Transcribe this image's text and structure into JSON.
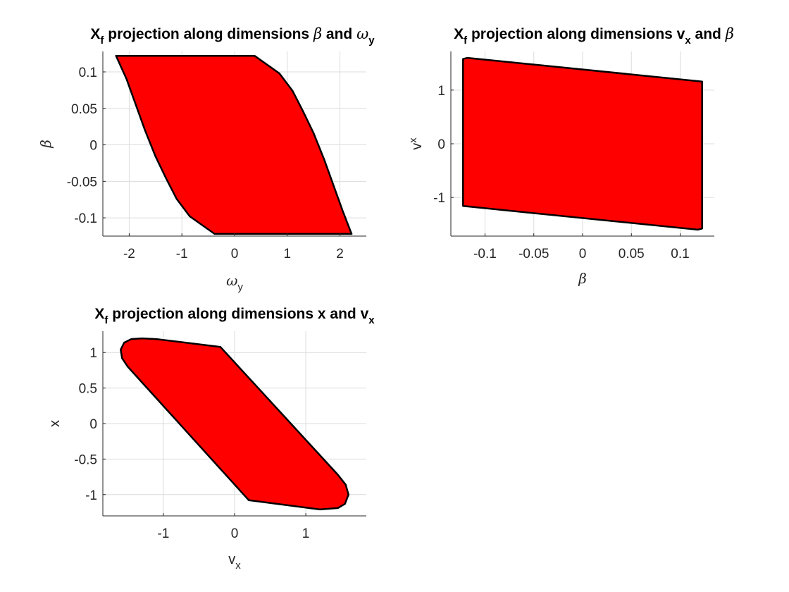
{
  "colors": {
    "fill": "#ff0000",
    "edge": "#000000",
    "axis": "#262626",
    "grid": "#dcdcdc",
    "background": "#ffffff"
  },
  "chart_data": [
    {
      "type": "area",
      "title": {
        "main": "X",
        "sub": "f",
        "rest": " projection along dimensions ",
        "a": "β",
        "and": " and ",
        "b": "ω",
        "b_sub": "y"
      },
      "xlabel": {
        "main": "ω",
        "sub": "y"
      },
      "ylabel": {
        "main": "β",
        "sub": ""
      },
      "xlim": [
        -2.5,
        2.5
      ],
      "ylim": [
        -0.125,
        0.128
      ],
      "xticks": [
        -2,
        -1,
        0,
        1,
        2
      ],
      "xtick_labels": [
        "-2",
        "-1",
        "0",
        "1",
        "2"
      ],
      "yticks": [
        -0.1,
        -0.05,
        0,
        0.05,
        0.1
      ],
      "ytick_labels": [
        "-0.1",
        "-0.05",
        "0",
        "0.05",
        "0.1"
      ],
      "grid": true,
      "polygon": [
        [
          -2.25,
          0.122
        ],
        [
          0.38,
          0.122
        ],
        [
          0.85,
          0.098
        ],
        [
          1.1,
          0.074
        ],
        [
          1.3,
          0.046
        ],
        [
          1.5,
          0.016
        ],
        [
          1.7,
          -0.02
        ],
        [
          1.9,
          -0.06
        ],
        [
          2.05,
          -0.09
        ],
        [
          2.22,
          -0.122
        ],
        [
          -0.38,
          -0.122
        ],
        [
          -0.85,
          -0.098
        ],
        [
          -1.1,
          -0.074
        ],
        [
          -1.3,
          -0.046
        ],
        [
          -1.5,
          -0.016
        ],
        [
          -1.7,
          0.02
        ],
        [
          -1.9,
          0.06
        ],
        [
          -2.05,
          0.09
        ]
      ]
    },
    {
      "type": "area",
      "title": {
        "main": "X",
        "sub": "f",
        "rest": " projection along dimensions ",
        "a": "v",
        "a_sub": "x",
        "and": " and ",
        "b": "β"
      },
      "xlabel": {
        "main": "β",
        "sub": ""
      },
      "ylabel": {
        "main": "v",
        "sub": "x"
      },
      "xlim": [
        -0.135,
        0.135
      ],
      "ylim": [
        -1.72,
        1.72
      ],
      "xticks": [
        -0.1,
        -0.05,
        0,
        0.05,
        0.1
      ],
      "xtick_labels": [
        "-0.1",
        "-0.05",
        "0",
        "0.05",
        "0.1"
      ],
      "yticks": [
        -1,
        0,
        1
      ],
      "ytick_labels": [
        "-1",
        "0",
        "1"
      ],
      "grid": true,
      "polygon": [
        [
          -0.1225,
          1.58
        ],
        [
          -0.118,
          1.6
        ],
        [
          0.1225,
          1.16
        ],
        [
          0.1225,
          -1.58
        ],
        [
          0.118,
          -1.6
        ],
        [
          -0.1225,
          -1.16
        ]
      ]
    },
    {
      "type": "area",
      "title": {
        "main": "X",
        "sub": "f",
        "rest": " projection along dimensions x and ",
        "a": "v",
        "a_sub": "x"
      },
      "xlabel": {
        "main": "v",
        "sub": "x"
      },
      "ylabel": {
        "main": "x",
        "sub": ""
      },
      "xlim": [
        -1.85,
        1.85
      ],
      "ylim": [
        -1.3,
        1.3
      ],
      "xticks": [
        -1,
        0,
        1
      ],
      "xtick_labels": [
        "-1",
        "0",
        "1"
      ],
      "yticks": [
        -1,
        -0.5,
        0,
        0.5,
        1
      ],
      "ytick_labels": [
        "-1",
        "-0.5",
        "0",
        "0.5",
        "1"
      ],
      "grid": true,
      "polygon": [
        [
          -1.6,
          1.04
        ],
        [
          -1.55,
          1.14
        ],
        [
          -1.45,
          1.19
        ],
        [
          -1.3,
          1.2
        ],
        [
          -1.1,
          1.19
        ],
        [
          -0.2,
          1.08
        ],
        [
          1.45,
          -0.72
        ],
        [
          1.56,
          -0.86
        ],
        [
          1.6,
          -1.0
        ],
        [
          1.55,
          -1.13
        ],
        [
          1.45,
          -1.19
        ],
        [
          1.2,
          -1.21
        ],
        [
          0.2,
          -1.08
        ],
        [
          -1.5,
          0.8
        ],
        [
          -1.58,
          0.92
        ]
      ]
    }
  ]
}
